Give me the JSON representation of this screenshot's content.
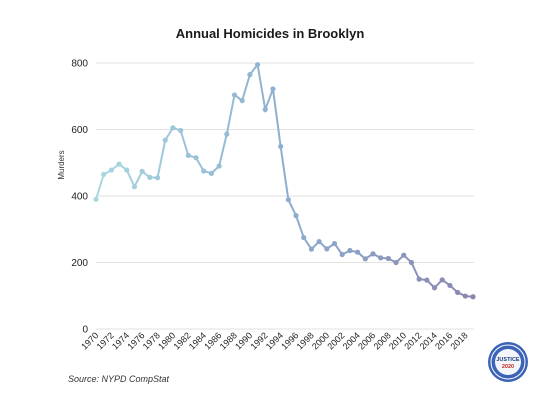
{
  "chart_data": {
    "type": "line",
    "title": "Annual Homicides in Brooklyn",
    "xlabel": "",
    "ylabel": "Murders",
    "xlim": [
      1970,
      2019
    ],
    "ylim": [
      0,
      800
    ],
    "yticks": [
      0,
      200,
      400,
      600,
      800
    ],
    "xticks": [
      1970,
      1972,
      1974,
      1976,
      1978,
      1980,
      1982,
      1984,
      1986,
      1988,
      1990,
      1992,
      1994,
      1996,
      1998,
      2000,
      2002,
      2004,
      2006,
      2008,
      2010,
      2012,
      2014,
      2016,
      2018
    ],
    "grid": true,
    "gradient_colors": [
      "#a8d8e0",
      "#8eaed0",
      "#8a86b0"
    ],
    "series": [
      {
        "name": "",
        "x": [
          1970,
          1971,
          1972,
          1973,
          1974,
          1975,
          1976,
          1977,
          1978,
          1979,
          1980,
          1981,
          1982,
          1983,
          1984,
          1985,
          1986,
          1987,
          1988,
          1989,
          1990,
          1991,
          1992,
          1993,
          1994,
          1995,
          1996,
          1997,
          1998,
          1999,
          2000,
          2001,
          2002,
          2003,
          2004,
          2005,
          2006,
          2007,
          2008,
          2009,
          2010,
          2011,
          2012,
          2013,
          2014,
          2015,
          2016,
          2017,
          2018,
          2019
        ],
        "values": [
          390,
          465,
          478,
          496,
          478,
          428,
          474,
          456,
          455,
          568,
          605,
          597,
          522,
          515,
          475,
          468,
          490,
          586,
          704,
          687,
          765,
          795,
          660,
          722,
          549,
          389,
          341,
          275,
          240,
          263,
          241,
          257,
          224,
          236,
          231,
          211,
          226,
          214,
          212,
          200,
          222,
          200,
          150,
          147,
          124,
          148,
          131,
          110,
          99,
          97
        ]
      }
    ]
  },
  "footer": {
    "source": "Source: NYPD CompStat"
  },
  "badge": {
    "line1": "JUSTICE",
    "line2": "2020"
  }
}
